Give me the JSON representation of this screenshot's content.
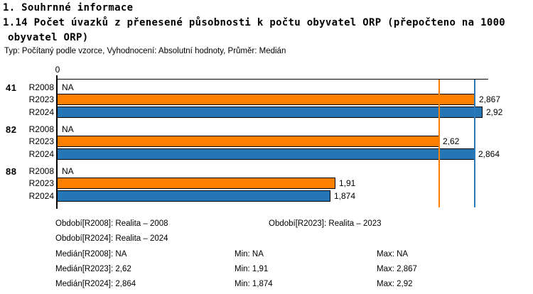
{
  "page": {
    "title_line1": "1. Souhrnné informace",
    "title_line2": "1.14 Počet úvazků z přenesené působnosti k počtu obyvatel ORP (přepočteno na 1000",
    "title_line3": "obyvatel ORP)",
    "subtitle": "Typ: Počítaný podle vzorce, Vyhodnocení: Absolutní hodnoty, Průměr: Medián"
  },
  "colors": {
    "r2023_bar": "#ff8000",
    "r2024_bar": "#2477b4",
    "r2023_median_line": "#ff8000",
    "r2024_median_line": "#2b7bba",
    "axis": "#000000"
  },
  "chart_data": {
    "type": "bar",
    "orientation": "horizontal",
    "value_axis": {
      "origin_label": "0",
      "min": 0,
      "ticks": [
        "0"
      ]
    },
    "series_order": [
      "R2008",
      "R2023",
      "R2024"
    ],
    "groups": [
      {
        "label": "41",
        "bars": [
          {
            "series": "R2008",
            "value": null,
            "display": "NA"
          },
          {
            "series": "R2023",
            "value": 2.867,
            "display": "2,867"
          },
          {
            "series": "R2024",
            "value": 2.92,
            "display": "2,92"
          }
        ]
      },
      {
        "label": "82",
        "bars": [
          {
            "series": "R2008",
            "value": null,
            "display": "NA"
          },
          {
            "series": "R2023",
            "value": 2.62,
            "display": "2,62"
          },
          {
            "series": "R2024",
            "value": 2.864,
            "display": "2,864"
          }
        ]
      },
      {
        "label": "88",
        "bars": [
          {
            "series": "R2008",
            "value": null,
            "display": "NA"
          },
          {
            "series": "R2023",
            "value": 1.91,
            "display": "1,91"
          },
          {
            "series": "R2024",
            "value": 1.874,
            "display": "1,874"
          }
        ]
      }
    ],
    "median_lines": [
      {
        "series": "R2023",
        "value": 2.62,
        "display": "2,62"
      },
      {
        "series": "R2024",
        "value": 2.864,
        "display": "2,864"
      }
    ]
  },
  "legend": {
    "periods_row1_left": "Období[R2008]: Realita – 2008",
    "periods_row1_right": "Období[R2023]: Realita – 2023",
    "periods_row2_left": "Období[R2024]: Realita – 2024",
    "stats": [
      {
        "median": "Medián[R2008]: NA",
        "min": "Min: NA",
        "max": "Max: NA"
      },
      {
        "median": "Medián[R2023]: 2,62",
        "min": "Min: 1,91",
        "max": "Max: 2,867"
      },
      {
        "median": "Medián[R2024]: 2,864",
        "min": "Min: 1,874",
        "max": "Max: 2,92"
      }
    ]
  }
}
